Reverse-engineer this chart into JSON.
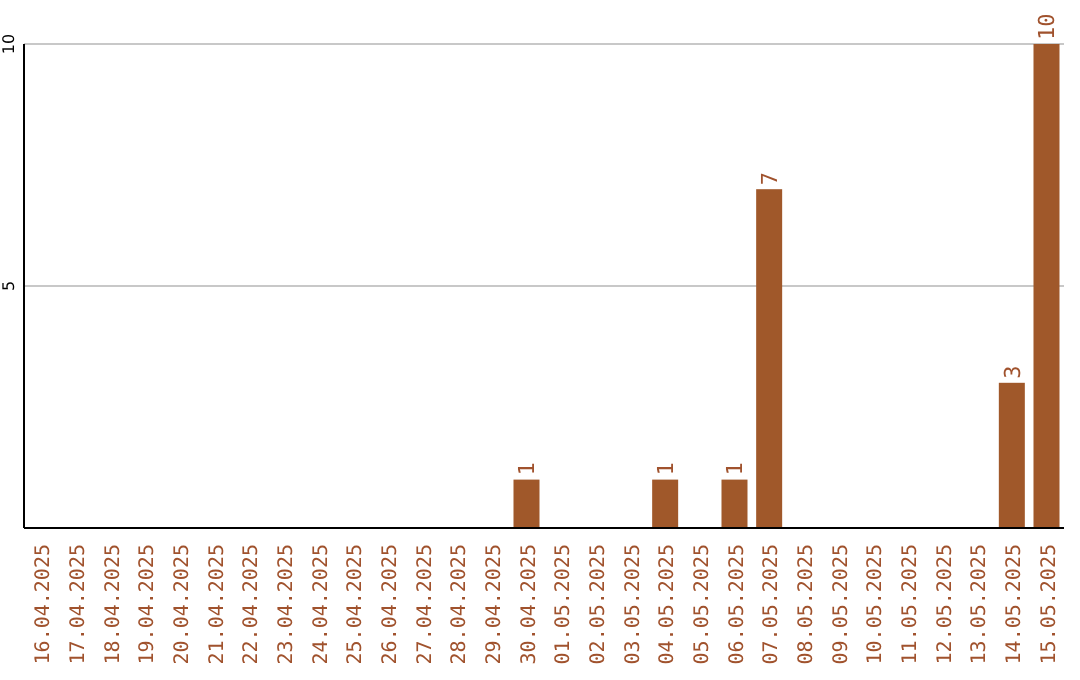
{
  "chart_data": {
    "type": "bar",
    "categories": [
      "16.04.2025",
      "17.04.2025",
      "18.04.2025",
      "19.04.2025",
      "20.04.2025",
      "21.04.2025",
      "22.04.2025",
      "23.04.2025",
      "24.04.2025",
      "25.04.2025",
      "26.04.2025",
      "27.04.2025",
      "28.04.2025",
      "29.04.2025",
      "30.04.2025",
      "01.05.2025",
      "02.05.2025",
      "03.05.2025",
      "04.05.2025",
      "05.05.2025",
      "06.05.2025",
      "07.05.2025",
      "08.05.2025",
      "09.05.2025",
      "10.05.2025",
      "11.05.2025",
      "12.05.2025",
      "13.05.2025",
      "14.05.2025",
      "15.05.2025"
    ],
    "values": [
      0,
      0,
      0,
      0,
      0,
      0,
      0,
      0,
      0,
      0,
      0,
      0,
      0,
      0,
      1,
      0,
      0,
      0,
      1,
      0,
      1,
      7,
      0,
      0,
      0,
      0,
      0,
      0,
      3,
      10
    ],
    "value_labels": [
      null,
      null,
      null,
      null,
      null,
      null,
      null,
      null,
      null,
      null,
      null,
      null,
      null,
      null,
      "1",
      null,
      null,
      null,
      "1",
      null,
      "1",
      "7",
      null,
      null,
      null,
      null,
      null,
      null,
      "3",
      "10"
    ],
    "color": "#a0582a",
    "ylim": [
      0,
      10
    ],
    "yticks": [
      5,
      10
    ],
    "grid": "y"
  }
}
